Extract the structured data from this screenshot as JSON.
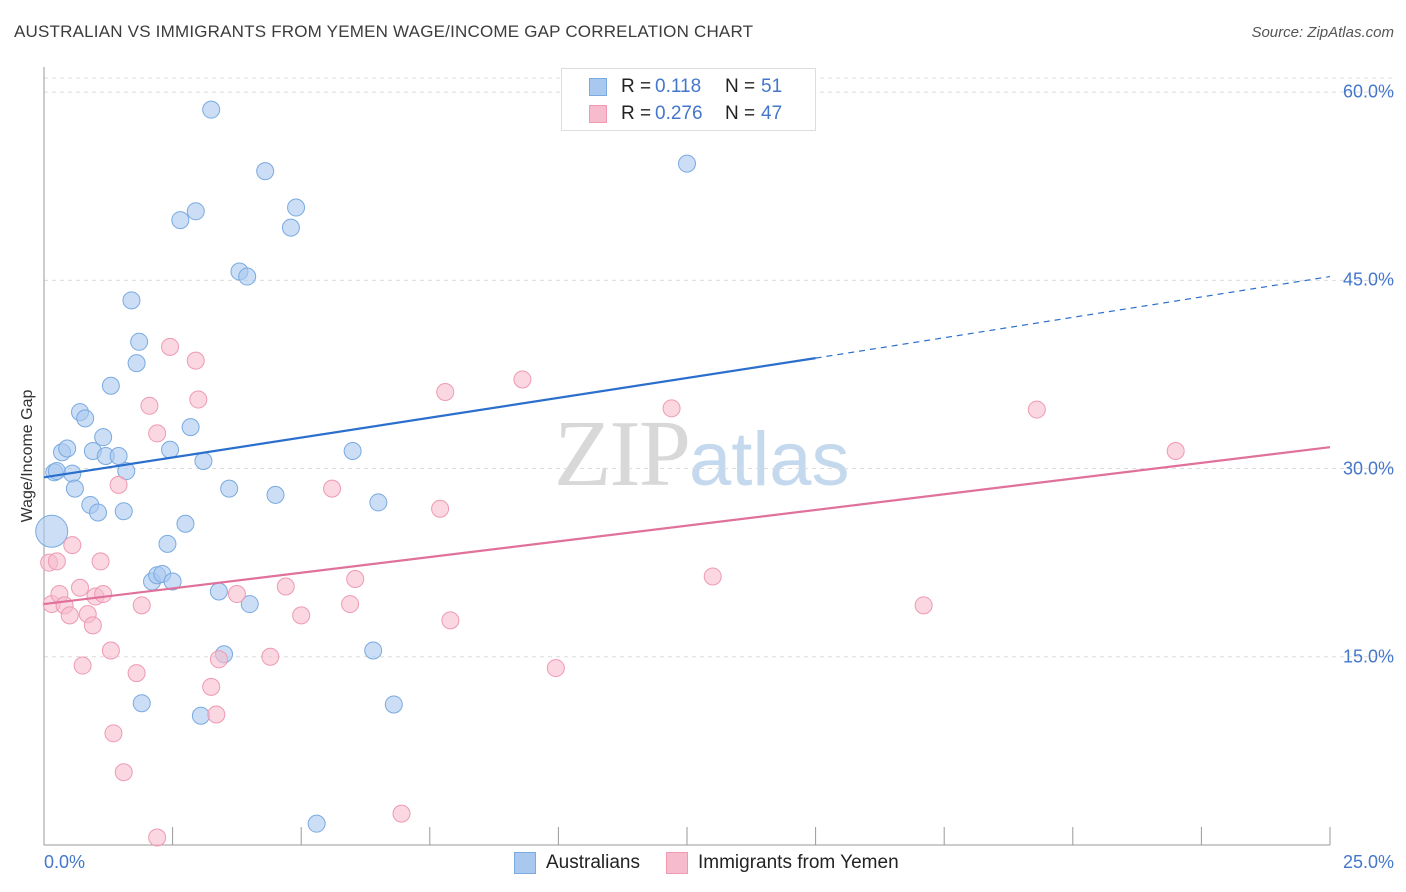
{
  "header": {
    "title": "AUSTRALIAN VS IMMIGRANTS FROM YEMEN WAGE/INCOME GAP CORRELATION CHART",
    "source": "Source: ZipAtlas.com"
  },
  "watermark": {
    "zip": "ZIP",
    "atlas": "atlas"
  },
  "legend_top": {
    "rows": [
      {
        "r_label": "R =",
        "r_value": "0.118",
        "n_label": "N =",
        "n_value": "51"
      },
      {
        "r_label": "R =",
        "r_value": "0.276",
        "n_label": "N =",
        "n_value": "47"
      }
    ]
  },
  "legend_bottom": {
    "items": [
      {
        "label": "Australians"
      },
      {
        "label": "Immigrants from Yemen"
      }
    ]
  },
  "colors": {
    "blue_fill": "#a9c8f0",
    "blue_stroke": "#7aaae0",
    "blue_line": "#2b6fcc",
    "pink_fill": "#f6bccd",
    "pink_stroke": "#ee9ab3",
    "pink_line": "#e0719a",
    "grid": "#dcdcdc",
    "tick_label": "#4477cc"
  },
  "chart_data": {
    "type": "scatter",
    "title": "AUSTRALIAN VS IMMIGRANTS FROM YEMEN WAGE/INCOME GAP CORRELATION CHART",
    "xlabel": "",
    "ylabel": "Wage/Income Gap",
    "xlim": [
      0,
      25
    ],
    "ylim": [
      0,
      62
    ],
    "x_tick_labels": [
      "0.0%",
      "25.0%"
    ],
    "y_ticks": [
      15,
      30,
      45,
      60
    ],
    "y_tick_labels": [
      "15.0%",
      "30.0%",
      "45.0%",
      "60.0%"
    ],
    "grid": true,
    "legend_placement": "top-center",
    "series": [
      {
        "name": "Australians",
        "r": 0.118,
        "n": 51,
        "trend": {
          "x0": 0,
          "y0": 29.3,
          "x1": 15,
          "y1": 38.8,
          "dashed_to_x": 25,
          "dashed_to_y": 45.3
        },
        "points": [
          [
            0.15,
            25.0
          ],
          [
            0.2,
            29.7
          ],
          [
            0.25,
            29.8
          ],
          [
            0.35,
            31.3
          ],
          [
            0.45,
            31.6
          ],
          [
            0.55,
            29.6
          ],
          [
            0.6,
            28.4
          ],
          [
            0.7,
            34.5
          ],
          [
            0.8,
            34.0
          ],
          [
            0.9,
            27.1
          ],
          [
            0.95,
            31.4
          ],
          [
            1.05,
            26.5
          ],
          [
            1.15,
            32.5
          ],
          [
            1.2,
            31.0
          ],
          [
            1.3,
            36.6
          ],
          [
            1.45,
            31.0
          ],
          [
            1.55,
            26.6
          ],
          [
            1.6,
            29.8
          ],
          [
            1.7,
            43.4
          ],
          [
            1.8,
            38.4
          ],
          [
            1.85,
            40.1
          ],
          [
            1.9,
            11.3
          ],
          [
            2.1,
            21.0
          ],
          [
            2.2,
            21.5
          ],
          [
            2.3,
            21.6
          ],
          [
            2.4,
            24.0
          ],
          [
            2.45,
            31.5
          ],
          [
            2.5,
            21.0
          ],
          [
            2.65,
            49.8
          ],
          [
            2.75,
            25.6
          ],
          [
            2.85,
            33.3
          ],
          [
            2.95,
            50.5
          ],
          [
            3.05,
            10.3
          ],
          [
            3.1,
            30.6
          ],
          [
            3.25,
            58.6
          ],
          [
            3.4,
            20.2
          ],
          [
            3.5,
            15.2
          ],
          [
            3.6,
            28.4
          ],
          [
            3.8,
            45.7
          ],
          [
            3.95,
            45.3
          ],
          [
            4.0,
            19.2
          ],
          [
            4.3,
            53.7
          ],
          [
            4.5,
            27.9
          ],
          [
            4.8,
            49.2
          ],
          [
            4.9,
            50.8
          ],
          [
            5.3,
            1.7
          ],
          [
            6.0,
            31.4
          ],
          [
            6.4,
            15.5
          ],
          [
            6.5,
            27.3
          ],
          [
            6.8,
            11.2
          ],
          [
            12.5,
            54.3
          ]
        ]
      },
      {
        "name": "Immigrants from Yemen",
        "r": 0.276,
        "n": 47,
        "trend": {
          "x0": 0,
          "y0": 19.2,
          "x1": 25,
          "y1": 31.7
        },
        "points": [
          [
            0.1,
            22.5
          ],
          [
            0.15,
            19.2
          ],
          [
            0.25,
            22.6
          ],
          [
            0.3,
            20.0
          ],
          [
            0.4,
            19.1
          ],
          [
            0.5,
            18.3
          ],
          [
            0.55,
            23.9
          ],
          [
            0.7,
            20.5
          ],
          [
            0.75,
            14.3
          ],
          [
            0.85,
            18.4
          ],
          [
            0.95,
            17.5
          ],
          [
            1.0,
            19.8
          ],
          [
            1.1,
            22.6
          ],
          [
            1.15,
            20.0
          ],
          [
            1.3,
            15.5
          ],
          [
            1.35,
            8.9
          ],
          [
            1.45,
            28.7
          ],
          [
            1.55,
            5.8
          ],
          [
            1.8,
            13.7
          ],
          [
            1.9,
            19.1
          ],
          [
            2.05,
            35.0
          ],
          [
            2.2,
            0.6
          ],
          [
            2.2,
            32.8
          ],
          [
            2.45,
            39.7
          ],
          [
            2.95,
            38.6
          ],
          [
            3.0,
            35.5
          ],
          [
            3.25,
            12.6
          ],
          [
            3.35,
            10.4
          ],
          [
            3.4,
            14.8
          ],
          [
            3.75,
            20.0
          ],
          [
            4.4,
            15.0
          ],
          [
            4.7,
            20.6
          ],
          [
            5.0,
            18.3
          ],
          [
            5.6,
            28.4
          ],
          [
            5.95,
            19.2
          ],
          [
            6.05,
            21.2
          ],
          [
            6.95,
            2.5
          ],
          [
            7.7,
            26.8
          ],
          [
            7.8,
            36.1
          ],
          [
            7.9,
            17.9
          ],
          [
            9.3,
            37.1
          ],
          [
            9.95,
            14.1
          ],
          [
            12.2,
            34.8
          ],
          [
            13.0,
            21.4
          ],
          [
            17.1,
            19.1
          ],
          [
            19.3,
            34.7
          ],
          [
            22.0,
            31.4
          ]
        ]
      }
    ]
  }
}
